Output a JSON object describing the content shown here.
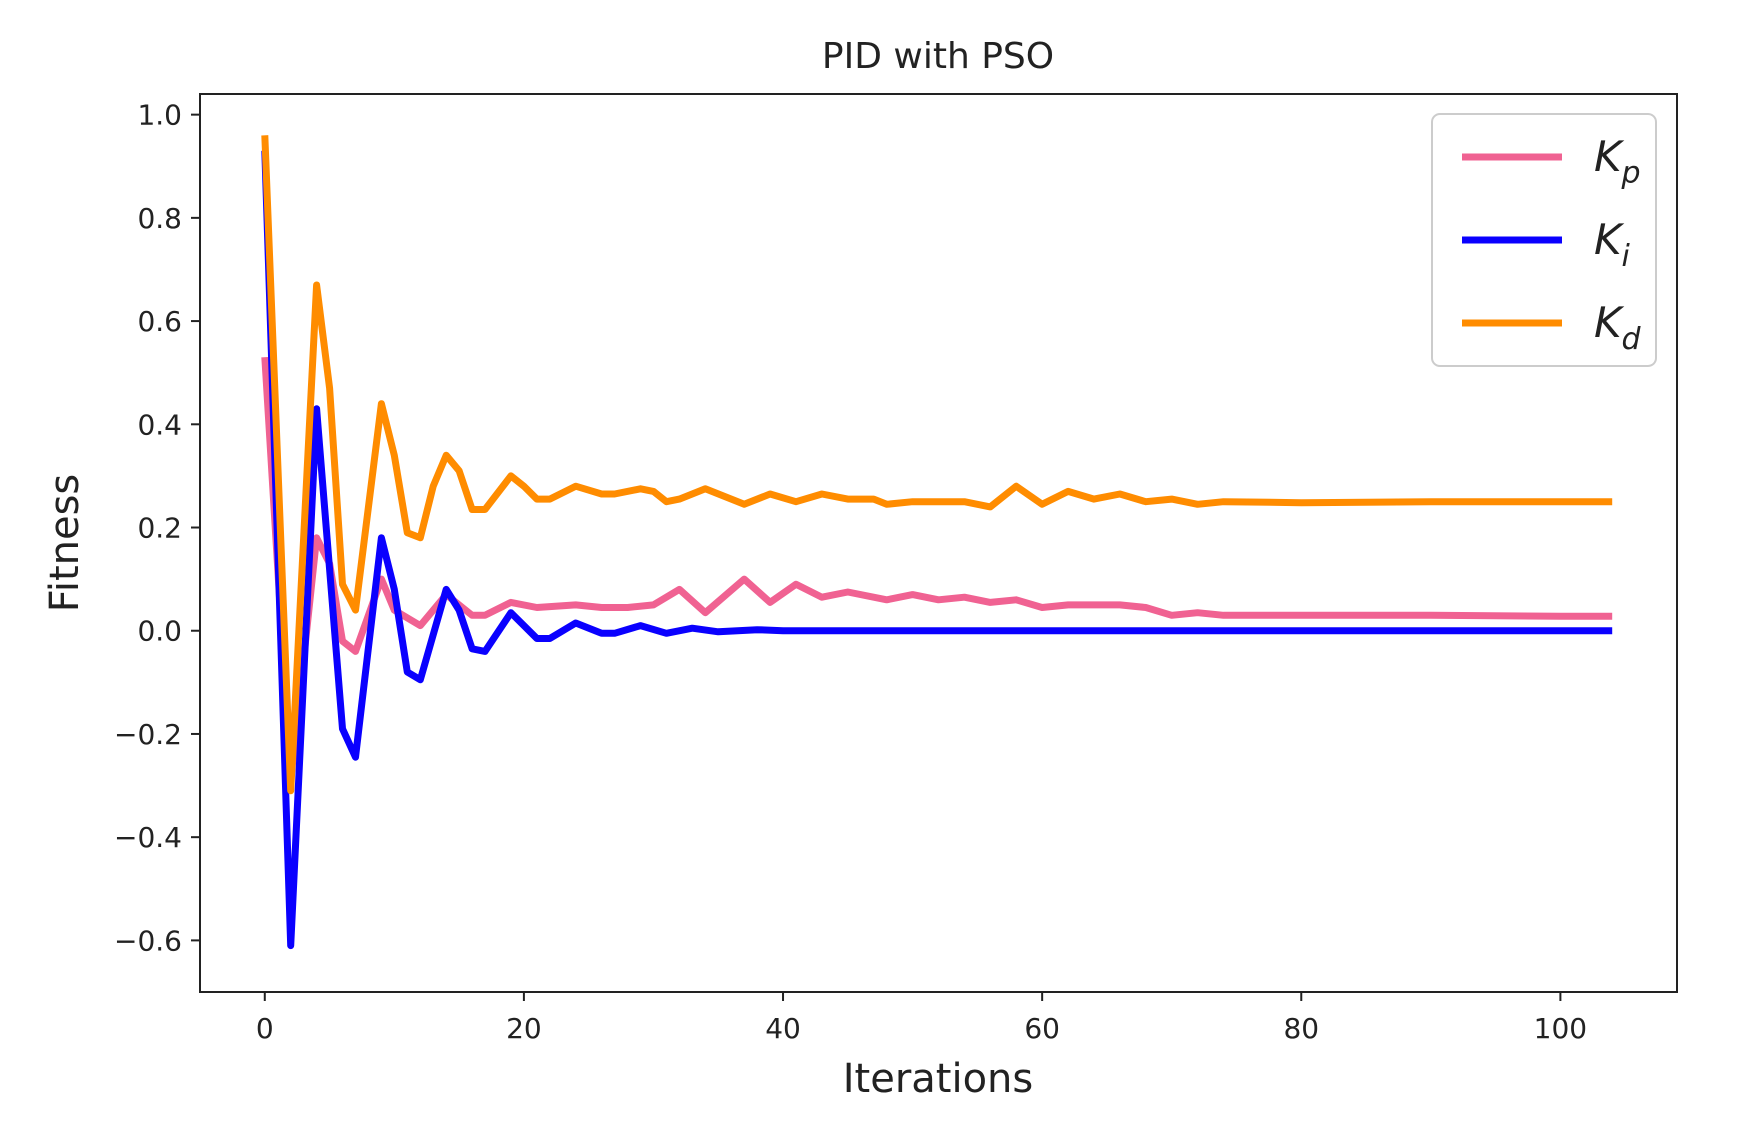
{
  "chart_data": {
    "type": "line",
    "title": "PID with PSO",
    "xlabel": "Iterations",
    "ylabel": "Fitness",
    "xlim": [
      -5,
      109
    ],
    "ylim": [
      -0.7,
      1.04
    ],
    "xticks": [
      0,
      20,
      40,
      60,
      80,
      100
    ],
    "xtick_labels": [
      "0",
      "20",
      "40",
      "60",
      "80",
      "100"
    ],
    "yticks": [
      1.0,
      0.8,
      0.6,
      0.4,
      0.2,
      0.0,
      -0.2,
      -0.4,
      -0.6
    ],
    "ytick_labels": [
      "1.0",
      "0.8",
      "0.6",
      "0.4",
      "0.2",
      "0.0",
      "−0.2",
      "−0.4",
      "−0.6"
    ],
    "legend_position": "top-right",
    "series": [
      {
        "name": "K_p",
        "label_main": "K",
        "label_sub": "p",
        "color": "#f06292",
        "x": [
          0,
          2,
          4,
          5,
          6,
          7,
          9,
          10,
          12,
          14,
          16,
          17,
          19,
          21,
          24,
          26,
          28,
          30,
          32,
          34,
          37,
          39,
          41,
          43,
          45,
          48,
          50,
          52,
          54,
          56,
          58,
          60,
          62,
          64,
          66,
          68,
          70,
          72,
          74,
          80,
          90,
          100,
          104
        ],
        "y": [
          0.53,
          -0.29,
          0.18,
          0.13,
          -0.02,
          -0.04,
          0.1,
          0.04,
          0.01,
          0.07,
          0.03,
          0.03,
          0.055,
          0.045,
          0.05,
          0.045,
          0.045,
          0.05,
          0.08,
          0.035,
          0.1,
          0.055,
          0.09,
          0.065,
          0.075,
          0.06,
          0.07,
          0.06,
          0.065,
          0.055,
          0.06,
          0.045,
          0.05,
          0.05,
          0.05,
          0.045,
          0.03,
          0.035,
          0.03,
          0.03,
          0.03,
          0.028,
          0.028
        ]
      },
      {
        "name": "K_i",
        "label_main": "K",
        "label_sub": "i",
        "color": "#0a00ff",
        "x": [
          0,
          2,
          4,
          6,
          7,
          9,
          10,
          11,
          12,
          14,
          15,
          16,
          17,
          19,
          21,
          22,
          24,
          26,
          27,
          29,
          31,
          33,
          35,
          38,
          40,
          45,
          50,
          60,
          80,
          104
        ],
        "y": [
          0.93,
          -0.61,
          0.43,
          -0.19,
          -0.245,
          0.18,
          0.08,
          -0.08,
          -0.095,
          0.08,
          0.04,
          -0.035,
          -0.04,
          0.035,
          -0.015,
          -0.015,
          0.015,
          -0.005,
          -0.005,
          0.01,
          -0.005,
          0.005,
          -0.002,
          0.002,
          0.0,
          0.0,
          0.0,
          0.0,
          0.0,
          0.0
        ]
      },
      {
        "name": "K_d",
        "label_main": "K",
        "label_sub": "d",
        "color": "#ff8c00",
        "x": [
          0,
          2,
          4,
          5,
          6,
          7,
          9,
          10,
          11,
          12,
          13,
          14,
          15,
          16,
          17,
          19,
          20,
          21,
          22,
          24,
          26,
          27,
          29,
          30,
          31,
          32,
          34,
          37,
          39,
          41,
          43,
          45,
          47,
          48,
          50,
          52,
          54,
          56,
          58,
          60,
          62,
          64,
          66,
          68,
          70,
          72,
          74,
          80,
          90,
          100,
          104
        ],
        "y": [
          0.96,
          -0.31,
          0.67,
          0.47,
          0.09,
          0.04,
          0.44,
          0.34,
          0.19,
          0.18,
          0.28,
          0.34,
          0.31,
          0.235,
          0.235,
          0.3,
          0.28,
          0.255,
          0.255,
          0.28,
          0.265,
          0.265,
          0.275,
          0.27,
          0.25,
          0.255,
          0.275,
          0.245,
          0.265,
          0.25,
          0.265,
          0.255,
          0.255,
          0.245,
          0.25,
          0.25,
          0.25,
          0.24,
          0.28,
          0.245,
          0.27,
          0.255,
          0.265,
          0.25,
          0.255,
          0.245,
          0.25,
          0.248,
          0.25,
          0.25,
          0.25
        ]
      }
    ]
  }
}
